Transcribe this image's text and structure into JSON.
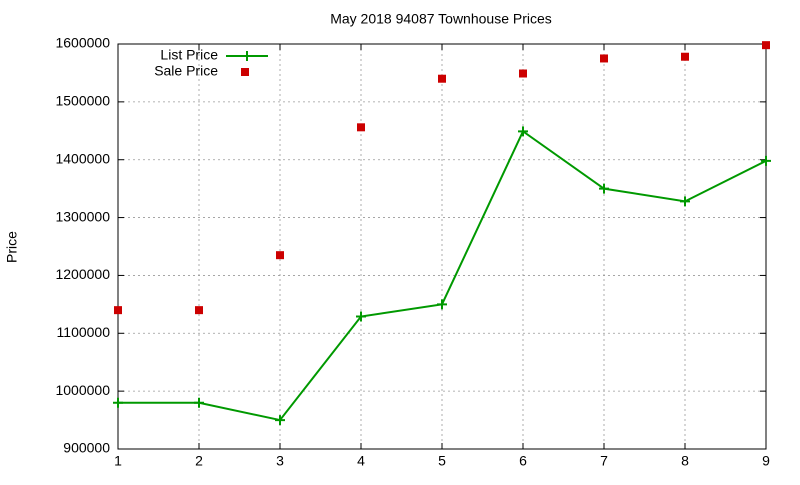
{
  "chart_data": {
    "type": "line",
    "title": "May 2018 94087 Townhouse Prices",
    "y_label": "Price",
    "x": [
      1,
      2,
      3,
      4,
      5,
      6,
      7,
      8,
      9
    ],
    "series": [
      {
        "name": "List Price",
        "color": "#009900",
        "style": "linespoints",
        "values": [
          980000,
          980000,
          950000,
          1129000,
          1150000,
          1449000,
          1350000,
          1328000,
          1398000
        ]
      },
      {
        "name": "Sale Price",
        "color": "#cc0000",
        "style": "points",
        "values": [
          1140000,
          1140000,
          1235000,
          1456000,
          1540000,
          1549000,
          1575000,
          1578000,
          1598000
        ]
      }
    ],
    "xlim": [
      1,
      9
    ],
    "xticks": [
      1,
      2,
      3,
      4,
      5,
      6,
      7,
      8,
      9
    ],
    "ylim": [
      900000,
      1600000
    ],
    "yticks": [
      900000,
      1000000,
      1100000,
      1200000,
      1300000,
      1400000,
      1500000,
      1600000
    ],
    "grid": true,
    "legend": "top-left"
  }
}
